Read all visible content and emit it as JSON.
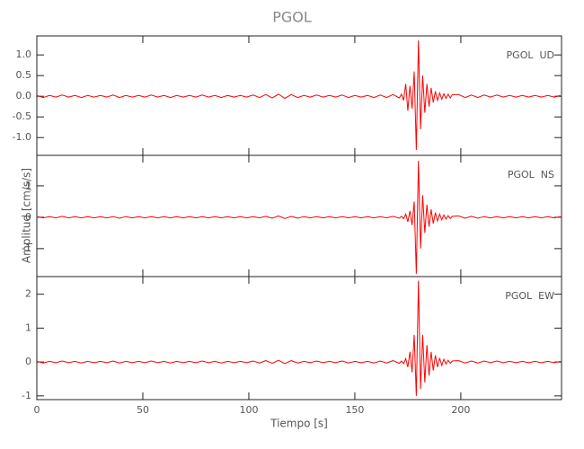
{
  "chart_data": [
    {
      "type": "line",
      "title": "PGOL",
      "panel_label": "PGOL  UD",
      "x": [
        0,
        3,
        6,
        9,
        12,
        15,
        18,
        21,
        24,
        27,
        30,
        33,
        36,
        39,
        42,
        45,
        48,
        51,
        54,
        57,
        60,
        63,
        66,
        69,
        72,
        75,
        78,
        81,
        84,
        87,
        90,
        93,
        96,
        99,
        102,
        105,
        108,
        111,
        114,
        117,
        120,
        123,
        126,
        129,
        132,
        135,
        138,
        141,
        144,
        147,
        150,
        153,
        156,
        159,
        162,
        165,
        168,
        171,
        172,
        173,
        174,
        175,
        176,
        177,
        178,
        179,
        180,
        181,
        182,
        183,
        184,
        185,
        186,
        187,
        188,
        189,
        190,
        191,
        192,
        193,
        194,
        195,
        196,
        199,
        202,
        205,
        208,
        211,
        214,
        217,
        220,
        223,
        226,
        229,
        232,
        235,
        238,
        241,
        244,
        247
      ],
      "series": [
        {
          "color": "#ff0000",
          "values": [
            0.02,
            -0.03,
            0.02,
            -0.02,
            0.03,
            -0.02,
            0.02,
            -0.03,
            0.02,
            -0.02,
            0.02,
            -0.02,
            0.03,
            -0.03,
            0.02,
            -0.02,
            0.02,
            -0.02,
            0.03,
            -0.02,
            0.02,
            -0.03,
            0.02,
            -0.02,
            0.02,
            -0.02,
            0.03,
            -0.02,
            0.02,
            -0.03,
            0.02,
            -0.02,
            0.02,
            -0.02,
            0.03,
            -0.03,
            0.04,
            -0.04,
            0.05,
            -0.05,
            0.04,
            -0.03,
            0.02,
            -0.02,
            0.03,
            -0.02,
            0.02,
            -0.02,
            0.03,
            -0.03,
            0.02,
            -0.02,
            0.02,
            -0.03,
            0.03,
            -0.03,
            0.04,
            -0.04,
            0.05,
            -0.1,
            0.3,
            -0.35,
            0.25,
            -0.3,
            0.6,
            -1.3,
            1.35,
            -0.8,
            0.5,
            -0.4,
            0.3,
            -0.25,
            0.2,
            -0.15,
            0.12,
            -0.1,
            0.08,
            -0.07,
            0.06,
            -0.05,
            0.05,
            -0.04,
            0.04,
            0.04,
            -0.03,
            0.03,
            -0.03,
            0.03,
            -0.02,
            0.03,
            -0.02,
            0.02,
            -0.02,
            0.02,
            -0.02,
            0.02,
            -0.02,
            0.02,
            -0.02,
            0.02
          ]
        }
      ],
      "xlim": [
        0,
        247.5
      ],
      "xticks": [
        0,
        50,
        100,
        150,
        200
      ],
      "ylim": [
        -1.43,
        1.46
      ],
      "yticks": [
        {
          "value": -1,
          "label": "-1.0"
        },
        {
          "value": -0.5,
          "label": "-0.5"
        },
        {
          "value": 0,
          "label": "0.0"
        },
        {
          "value": 0.5,
          "label": "0.5"
        },
        {
          "value": 1,
          "label": "1.0"
        }
      ]
    },
    {
      "type": "line",
      "ylabel": "Amplitud [cm/s/s]",
      "panel_label": "PGOL  NS",
      "x": [
        0,
        3,
        6,
        9,
        12,
        15,
        18,
        21,
        24,
        27,
        30,
        33,
        36,
        39,
        42,
        45,
        48,
        51,
        54,
        57,
        60,
        63,
        66,
        69,
        72,
        75,
        78,
        81,
        84,
        87,
        90,
        93,
        96,
        99,
        102,
        105,
        108,
        111,
        114,
        117,
        120,
        123,
        126,
        129,
        132,
        135,
        138,
        141,
        144,
        147,
        150,
        153,
        156,
        159,
        162,
        165,
        168,
        171,
        172,
        173,
        174,
        175,
        176,
        177,
        178,
        179,
        180,
        181,
        182,
        183,
        184,
        185,
        186,
        187,
        188,
        189,
        190,
        191,
        192,
        193,
        194,
        195,
        196,
        199,
        202,
        205,
        208,
        211,
        214,
        217,
        220,
        223,
        226,
        229,
        232,
        235,
        238,
        241,
        244,
        247
      ],
      "series": [
        {
          "color": "#ff0000",
          "values": [
            0.02,
            -0.02,
            0.02,
            -0.02,
            0.03,
            -0.02,
            0.02,
            -0.02,
            0.02,
            -0.02,
            0.02,
            -0.02,
            0.02,
            -0.03,
            0.02,
            -0.02,
            0.02,
            -0.02,
            0.02,
            -0.02,
            0.02,
            -0.02,
            0.02,
            -0.02,
            0.02,
            -0.02,
            0.02,
            -0.02,
            0.02,
            -0.02,
            0.02,
            -0.02,
            0.02,
            -0.02,
            0.02,
            -0.02,
            0.03,
            -0.03,
            0.04,
            -0.04,
            0.03,
            -0.03,
            0.02,
            -0.02,
            0.02,
            -0.02,
            0.02,
            -0.02,
            0.02,
            -0.02,
            0.02,
            -0.02,
            0.02,
            -0.02,
            0.02,
            -0.02,
            0.03,
            -0.03,
            0.03,
            -0.05,
            0.1,
            -0.15,
            0.2,
            -0.25,
            0.5,
            -1.8,
            1.8,
            -1.0,
            0.7,
            -0.5,
            0.4,
            -0.3,
            0.25,
            -0.2,
            0.15,
            -0.12,
            0.1,
            -0.08,
            0.07,
            -0.06,
            0.05,
            -0.04,
            0.03,
            0.04,
            -0.03,
            0.03,
            -0.03,
            0.02,
            -0.02,
            0.02,
            -0.02,
            0.02,
            -0.02,
            0.02,
            -0.02,
            0.02,
            -0.02,
            0.02,
            -0.02,
            0.02
          ]
        }
      ],
      "xlim": [
        0,
        247.5
      ],
      "xticks": [
        0,
        50,
        100,
        150,
        200
      ],
      "ylim": [
        -1.89,
        1.97
      ],
      "yticks": [
        -1,
        0,
        1
      ]
    },
    {
      "type": "line",
      "xlabel": "Tiempo [s]",
      "panel_label": "PGOL  EW",
      "x": [
        0,
        3,
        6,
        9,
        12,
        15,
        18,
        21,
        24,
        27,
        30,
        33,
        36,
        39,
        42,
        45,
        48,
        51,
        54,
        57,
        60,
        63,
        66,
        69,
        72,
        75,
        78,
        81,
        84,
        87,
        90,
        93,
        96,
        99,
        102,
        105,
        108,
        111,
        114,
        117,
        120,
        123,
        126,
        129,
        132,
        135,
        138,
        141,
        144,
        147,
        150,
        153,
        156,
        159,
        162,
        165,
        168,
        171,
        172,
        173,
        174,
        175,
        176,
        177,
        178,
        179,
        180,
        181,
        182,
        183,
        184,
        185,
        186,
        187,
        188,
        189,
        190,
        191,
        192,
        193,
        194,
        195,
        196,
        199,
        202,
        205,
        208,
        211,
        214,
        217,
        220,
        223,
        226,
        229,
        232,
        235,
        238,
        241,
        244,
        247
      ],
      "series": [
        {
          "color": "#ff0000",
          "values": [
            0.02,
            -0.03,
            0.02,
            -0.02,
            0.03,
            -0.02,
            0.02,
            -0.03,
            0.02,
            -0.02,
            0.02,
            -0.02,
            0.03,
            -0.03,
            0.02,
            -0.02,
            0.02,
            -0.02,
            0.03,
            -0.02,
            0.02,
            -0.03,
            0.02,
            -0.02,
            0.02,
            -0.02,
            0.03,
            -0.02,
            0.02,
            -0.03,
            0.02,
            -0.02,
            0.02,
            -0.02,
            0.03,
            -0.03,
            0.04,
            -0.04,
            0.05,
            -0.05,
            0.04,
            -0.03,
            0.02,
            -0.02,
            0.03,
            -0.02,
            0.02,
            -0.02,
            0.03,
            -0.03,
            0.02,
            -0.02,
            0.02,
            -0.03,
            0.03,
            -0.03,
            0.04,
            -0.04,
            0.03,
            -0.05,
            0.1,
            -0.15,
            0.3,
            -0.3,
            0.8,
            -1.0,
            2.4,
            -0.8,
            0.8,
            -0.6,
            0.5,
            -0.4,
            0.3,
            -0.25,
            0.2,
            -0.15,
            0.12,
            -0.1,
            0.08,
            -0.06,
            0.05,
            -0.04,
            0.03,
            0.04,
            -0.03,
            0.03,
            -0.03,
            0.03,
            -0.02,
            0.03,
            -0.02,
            0.02,
            -0.02,
            0.02,
            -0.02,
            0.02,
            -0.02,
            0.02,
            -0.02,
            0.02
          ]
        }
      ],
      "xlim": [
        0,
        247.5
      ],
      "xticks": [
        0,
        50,
        100,
        150,
        200
      ],
      "ylim": [
        -1.11,
        2.52
      ],
      "yticks": [
        -1,
        0,
        1,
        2
      ]
    }
  ]
}
